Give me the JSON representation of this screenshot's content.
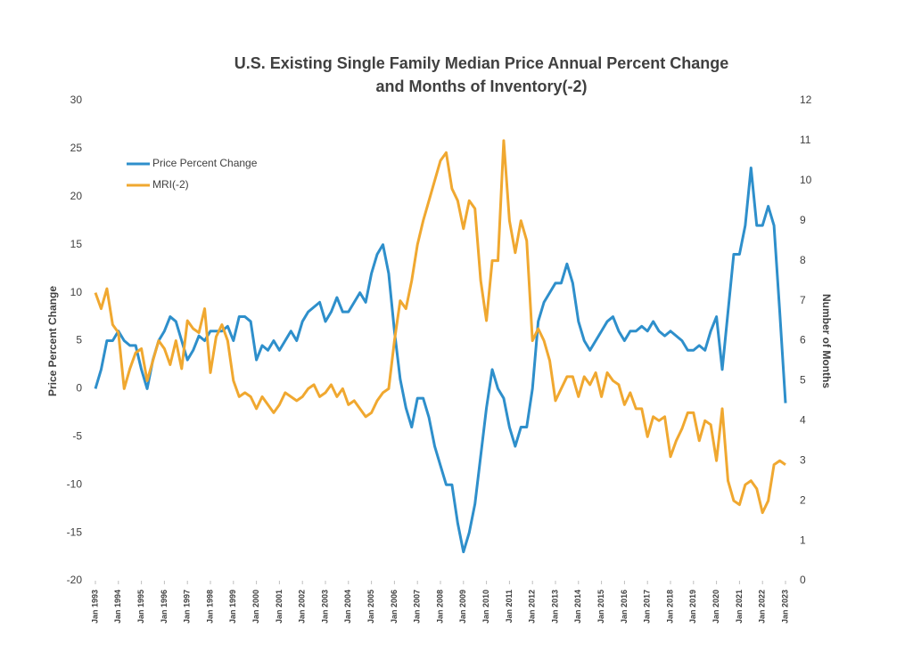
{
  "chart_data": {
    "type": "line",
    "title": [
      "U.S. Existing Single Family Median Price Annual Percent Change",
      "and Months of Inventory(-2)"
    ],
    "y_label": "Price Percent Change",
    "y2_label": "Number of Months",
    "legend": "upper left",
    "x": [
      1993,
      1993.25,
      1993.5,
      1993.75,
      1994,
      1994.25,
      1994.5,
      1994.75,
      1995,
      1995.25,
      1995.5,
      1995.75,
      1996,
      1996.25,
      1996.5,
      1996.75,
      1997,
      1997.25,
      1997.5,
      1997.75,
      1998,
      1998.25,
      1998.5,
      1998.75,
      1999,
      1999.25,
      1999.5,
      1999.75,
      2000,
      2000.25,
      2000.5,
      2000.75,
      2001,
      2001.25,
      2001.5,
      2001.75,
      2002,
      2002.25,
      2002.5,
      2002.75,
      2003,
      2003.25,
      2003.5,
      2003.75,
      2004,
      2004.25,
      2004.5,
      2004.75,
      2005,
      2005.25,
      2005.5,
      2005.75,
      2006,
      2006.25,
      2006.5,
      2006.75,
      2007,
      2007.25,
      2007.5,
      2007.75,
      2008,
      2008.25,
      2008.5,
      2008.75,
      2009,
      2009.25,
      2009.5,
      2009.75,
      2010,
      2010.25,
      2010.5,
      2010.75,
      2011,
      2011.25,
      2011.5,
      2011.75,
      2012,
      2012.25,
      2012.5,
      2012.75,
      2013,
      2013.25,
      2013.5,
      2013.75,
      2014,
      2014.25,
      2014.5,
      2014.75,
      2015,
      2015.25,
      2015.5,
      2015.75,
      2016,
      2016.25,
      2016.5,
      2016.75,
      2017,
      2017.25,
      2017.5,
      2017.75,
      2018,
      2018.25,
      2018.5,
      2018.75,
      2019,
      2019.25,
      2019.5,
      2019.75,
      2020,
      2020.25,
      2020.5,
      2020.75,
      2021,
      2021.25,
      2021.5,
      2021.75,
      2022,
      2022.25,
      2022.5,
      2022.75,
      2023
    ],
    "series": [
      {
        "name": "Price Percent Change",
        "color": "#2e8fcb",
        "axis": "y",
        "values": [
          0,
          2,
          5,
          5,
          6,
          5,
          4.5,
          4.5,
          2,
          0,
          3,
          5,
          6,
          7.5,
          7,
          5,
          3,
          4,
          5.5,
          5,
          6,
          6,
          6,
          6.5,
          5,
          7.5,
          7.5,
          7,
          3,
          4.5,
          4,
          5,
          4,
          5,
          6,
          5,
          7,
          8,
          8.5,
          9,
          7,
          8,
          9.5,
          8,
          8,
          9,
          10,
          9,
          12,
          14,
          15,
          12,
          6,
          1,
          -2,
          -4,
          -1,
          -1,
          -3,
          -6,
          -8,
          -10,
          -10,
          -14,
          -17,
          -15,
          -12,
          -7,
          -2,
          2,
          0,
          -1,
          -4,
          -6,
          -4,
          -4,
          0,
          7,
          9,
          10,
          11,
          11,
          13,
          11,
          7,
          5,
          4,
          5,
          6,
          7,
          7.5,
          6,
          5,
          6,
          6,
          6.5,
          6,
          7,
          6,
          5.5,
          6,
          5.5,
          5,
          4,
          4,
          4.5,
          4,
          6,
          7.5,
          2,
          8,
          14,
          14,
          17,
          23,
          17,
          17,
          19,
          17,
          8,
          -1.5
        ]
      },
      {
        "name": "MRI(-2)",
        "color": "#f0a830",
        "axis": "y2",
        "values": [
          7.2,
          6.8,
          7.3,
          6.4,
          6.2,
          4.8,
          5.3,
          5.7,
          5.8,
          5.0,
          5.5,
          6.0,
          5.8,
          5.4,
          6.0,
          5.3,
          6.5,
          6.3,
          6.2,
          6.8,
          5.2,
          6.1,
          6.4,
          6.0,
          5.0,
          4.6,
          4.7,
          4.6,
          4.3,
          4.6,
          4.4,
          4.2,
          4.4,
          4.7,
          4.6,
          4.5,
          4.6,
          4.8,
          4.9,
          4.6,
          4.7,
          4.9,
          4.6,
          4.8,
          4.4,
          4.5,
          4.3,
          4.1,
          4.2,
          4.5,
          4.7,
          4.8,
          6.0,
          7.0,
          6.8,
          7.5,
          8.4,
          9.0,
          9.5,
          10.0,
          10.5,
          10.7,
          9.8,
          9.5,
          8.8,
          9.5,
          9.3,
          7.5,
          6.5,
          8.0,
          8.0,
          11.0,
          9.0,
          8.2,
          9.0,
          8.5,
          6.0,
          6.3,
          6.0,
          5.5,
          4.5,
          4.8,
          5.1,
          5.1,
          4.6,
          5.1,
          4.9,
          5.2,
          4.6,
          5.2,
          5.0,
          4.9,
          4.4,
          4.7,
          4.3,
          4.3,
          3.6,
          4.1,
          4.0,
          4.1,
          3.1,
          3.5,
          3.8,
          4.2,
          4.2,
          3.5,
          4.0,
          3.9,
          3.0,
          4.3,
          2.5,
          2.0,
          1.9,
          2.4,
          2.5,
          2.3,
          1.7,
          2.0,
          2.9,
          3.0,
          2.9
        ]
      }
    ],
    "xlim": [
      1993,
      2023
    ],
    "xticks": [
      {
        "value": 1993,
        "label": "Jan 1993"
      },
      {
        "value": 1994,
        "label": "Jan 1994"
      },
      {
        "value": 1995,
        "label": "Jan 1995"
      },
      {
        "value": 1996,
        "label": "Jan 1996"
      },
      {
        "value": 1997,
        "label": "Jan 1997"
      },
      {
        "value": 1998,
        "label": "Jan 1998"
      },
      {
        "value": 1999,
        "label": "Jan 1999"
      },
      {
        "value": 2000,
        "label": "Jan 2000"
      },
      {
        "value": 2001,
        "label": "Jan 2001"
      },
      {
        "value": 2002,
        "label": "Jan 2002"
      },
      {
        "value": 2003,
        "label": "Jan 2003"
      },
      {
        "value": 2004,
        "label": "Jan 2004"
      },
      {
        "value": 2005,
        "label": "Jan 2005"
      },
      {
        "value": 2006,
        "label": "Jan 2006"
      },
      {
        "value": 2007,
        "label": "Jan 2007"
      },
      {
        "value": 2008,
        "label": "Jan 2008"
      },
      {
        "value": 2009,
        "label": "Jan 2009"
      },
      {
        "value": 2010,
        "label": "Jan 2010"
      },
      {
        "value": 2011,
        "label": "Jan 2011"
      },
      {
        "value": 2012,
        "label": "Jan 2012"
      },
      {
        "value": 2013,
        "label": "Jan 2013"
      },
      {
        "value": 2014,
        "label": "Jan 2014"
      },
      {
        "value": 2015,
        "label": "Jan 2015"
      },
      {
        "value": 2016,
        "label": "Jan 2016"
      },
      {
        "value": 2017,
        "label": "Jan 2017"
      },
      {
        "value": 2018,
        "label": "Jan 2018"
      },
      {
        "value": 2019,
        "label": "Jan 2019"
      },
      {
        "value": 2020,
        "label": "Jan 2020"
      },
      {
        "value": 2021,
        "label": "Jan 2021"
      },
      {
        "value": 2022,
        "label": "Jan 2022"
      },
      {
        "value": 2023,
        "label": "Jan 2023"
      }
    ],
    "ylim": [
      -20,
      30
    ],
    "yticks": [
      -20,
      -15,
      -10,
      -5,
      0,
      5,
      10,
      15,
      20,
      25,
      30
    ],
    "y2lim": [
      0,
      12
    ],
    "y2ticks": [
      0,
      1,
      2,
      3,
      4,
      5,
      6,
      7,
      8,
      9,
      10,
      11,
      12
    ],
    "grid": false
  }
}
